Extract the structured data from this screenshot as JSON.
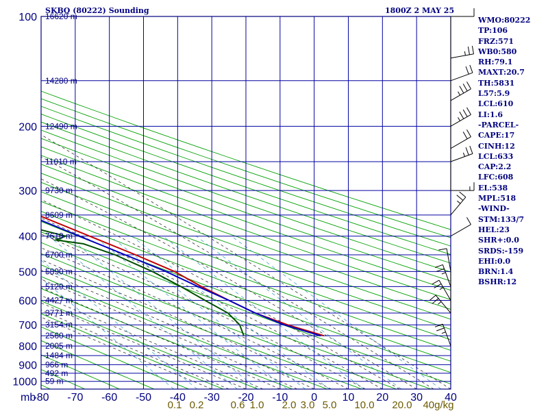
{
  "header": {
    "title": "SKBQ (80222) Sounding",
    "datetime": "1800Z  2 MAY 25"
  },
  "indices": [
    "WMO:80222",
    "TP:106",
    "FRZ:571",
    "WB0:580",
    "RH:79.1",
    "MAXT:20.7",
    "TH:5831",
    "L57:5.9",
    "LCL:610",
    "LI:1.6",
    "-PARCEL-",
    "CAPE:17",
    "CINH:12",
    "LCL:633",
    "CAP:2.2",
    "LFC:608",
    "EL:538",
    "MPL:518",
    "-WIND-",
    "STM:133/7",
    "HEL:23",
    "SHR+:0.0",
    "SRDS:-159",
    "EHI:0.0",
    "BRN:1.4",
    "BSHR:12"
  ],
  "colors": {
    "frame": "#000080",
    "grid": "#0000a0",
    "dry_adiabat": "#00a000",
    "moist_adiabat": "#303030",
    "mixing_ratio": "#3fa0c8",
    "temperature": "#c00000",
    "dewpoint": "#005000",
    "parcel": "#0000c0",
    "height_label": "#000080",
    "mixing_label": "#6b5a00",
    "pressure_label": "#000080"
  },
  "chart_data": {
    "type": "line",
    "title": "SKBQ (80222) Sounding",
    "xlabel_prefix": "mb",
    "x_ticks": [
      -80,
      -70,
      -60,
      -50,
      -40,
      -30,
      -20,
      -10,
      0,
      10,
      20,
      30,
      40
    ],
    "x_tick_labels": [
      "-80",
      "-70",
      "-60",
      "-50",
      "-40",
      "-30",
      "-20",
      "-10",
      "0",
      "10",
      "20",
      "30",
      "40"
    ],
    "xlim": [
      -80,
      40
    ],
    "y_ticks": [
      100,
      200,
      300,
      400,
      500,
      600,
      700,
      800,
      900,
      1000
    ],
    "y_tick_labels": [
      "100",
      "200",
      "300",
      "400",
      "500",
      "600",
      "700",
      "800",
      "900",
      "1000"
    ],
    "ylim": [
      1050,
      100
    ],
    "mixing_ratio_labels": [
      "0.1",
      "0.2",
      "0.6",
      "1.0",
      "2.0",
      "3.0",
      "5.0",
      "10.0",
      "20.0",
      "40g/kg"
    ],
    "height_labels": [
      {
        "p": 100,
        "text": "16620 m"
      },
      {
        "p": 150,
        "text": "14280 m"
      },
      {
        "p": 200,
        "text": "12490 m"
      },
      {
        "p": 250,
        "text": "11010 m"
      },
      {
        "p": 300,
        "text": "9730 m"
      },
      {
        "p": 350,
        "text": "8609 m"
      },
      {
        "p": 400,
        "text": "7610 m"
      },
      {
        "p": 450,
        "text": "6700 m"
      },
      {
        "p": 500,
        "text": "5890 m"
      },
      {
        "p": 550,
        "text": "5129 m"
      },
      {
        "p": 600,
        "text": "4427 m"
      },
      {
        "p": 650,
        "text": "3771 m"
      },
      {
        "p": 700,
        "text": "3154 m"
      },
      {
        "p": 750,
        "text": "2560 m"
      },
      {
        "p": 800,
        "text": "2005 m"
      },
      {
        "p": 850,
        "text": "1484 m"
      },
      {
        "p": 900,
        "text": "966 m"
      },
      {
        "p": 950,
        "text": "492 m"
      },
      {
        "p": 1000,
        "text": "59 m"
      }
    ],
    "series": [
      {
        "key": "temperature",
        "values": [
          {
            "p": 100,
            "t": -81
          },
          {
            "p": 150,
            "t": -72
          },
          {
            "p": 160,
            "t": -69
          },
          {
            "p": 200,
            "t": -62
          },
          {
            "p": 250,
            "t": -50
          },
          {
            "p": 300,
            "t": -40
          },
          {
            "p": 350,
            "t": -30
          },
          {
            "p": 400,
            "t": -21
          },
          {
            "p": 450,
            "t": -13
          },
          {
            "p": 500,
            "t": -6.5
          },
          {
            "p": 550,
            "t": -3
          },
          {
            "p": 600,
            "t": 1
          },
          {
            "p": 650,
            "t": 5
          },
          {
            "p": 700,
            "t": 11
          },
          {
            "p": 750,
            "t": 18.5
          }
        ]
      },
      {
        "key": "dewpoint",
        "values": [
          {
            "p": 125,
            "t": -95
          },
          {
            "p": 145,
            "t": -78
          },
          {
            "p": 160,
            "t": -83
          },
          {
            "p": 200,
            "t": -73
          },
          {
            "p": 220,
            "t": -71
          },
          {
            "p": 245,
            "t": -65
          },
          {
            "p": 255,
            "t": -59
          },
          {
            "p": 270,
            "t": -62
          },
          {
            "p": 285,
            "t": -60
          },
          {
            "p": 295,
            "t": -65
          },
          {
            "p": 300,
            "t": -50
          },
          {
            "p": 305,
            "t": -57
          },
          {
            "p": 340,
            "t": -45
          },
          {
            "p": 350,
            "t": -37
          },
          {
            "p": 365,
            "t": -43
          },
          {
            "p": 380,
            "t": -35
          },
          {
            "p": 400,
            "t": -28
          },
          {
            "p": 410,
            "t": -32
          },
          {
            "p": 420,
            "t": -25
          },
          {
            "p": 450,
            "t": -19
          },
          {
            "p": 500,
            "t": -13
          },
          {
            "p": 550,
            "t": -9
          },
          {
            "p": 600,
            "t": -6
          },
          {
            "p": 650,
            "t": -3
          },
          {
            "p": 700,
            "t": -3
          },
          {
            "p": 750,
            "t": -5
          }
        ]
      },
      {
        "key": "parcel",
        "values": [
          {
            "p": 125,
            "t": -96
          },
          {
            "p": 200,
            "t": -67
          },
          {
            "p": 300,
            "t": -43
          },
          {
            "p": 400,
            "t": -24
          },
          {
            "p": 500,
            "t": -9
          },
          {
            "p": 550,
            "t": -4
          },
          {
            "p": 600,
            "t": 1
          },
          {
            "p": 650,
            "t": 5
          },
          {
            "p": 700,
            "t": 10
          },
          {
            "p": 750,
            "t": 17.5
          }
        ]
      }
    ],
    "wind_barbs": [
      {
        "p": 100,
        "dir": 90,
        "spd": 10
      },
      {
        "p": 130,
        "dir": 80,
        "spd": 15
      },
      {
        "p": 150,
        "dir": 70,
        "spd": 20
      },
      {
        "p": 170,
        "dir": 60,
        "spd": 25
      },
      {
        "p": 200,
        "dir": 60,
        "spd": 25
      },
      {
        "p": 230,
        "dir": 60,
        "spd": 20
      },
      {
        "p": 250,
        "dir": 70,
        "spd": 15
      },
      {
        "p": 300,
        "dir": 90,
        "spd": 5
      },
      {
        "p": 350,
        "dir": 40,
        "spd": 15
      },
      {
        "p": 400,
        "dir": 60,
        "spd": 10
      },
      {
        "p": 500,
        "dir": 350,
        "spd": 10
      },
      {
        "p": 550,
        "dir": 340,
        "spd": 15
      },
      {
        "p": 600,
        "dir": 330,
        "spd": 15
      },
      {
        "p": 650,
        "dir": 320,
        "spd": 15
      },
      {
        "p": 800,
        "dir": 340,
        "spd": 15
      }
    ],
    "grid": true
  }
}
